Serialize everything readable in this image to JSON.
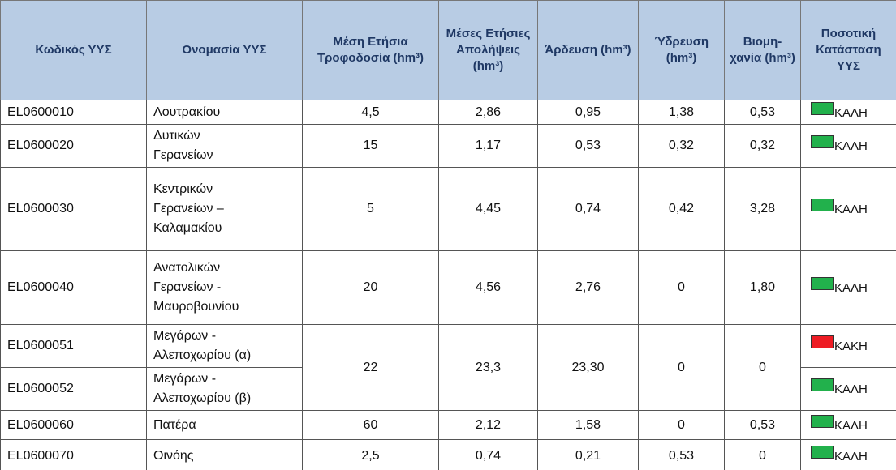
{
  "table": {
    "header": [
      "Κωδικός ΥΥΣ",
      "Ονομασία ΥΥΣ",
      "Μέση Ετήσια Τροφοδοσία (hm³)",
      "Μέσες Ετήσιες Απολήψεις (hm³)",
      "Άρδευση (hm³)",
      "Ύδρευση (hm³)",
      "Βιομη-χανία (hm³)",
      "Ποσοτική Κατάσταση ΥΥΣ"
    ],
    "rows": [
      {
        "code": "EL0600010",
        "name": "Λουτρακίου",
        "inflow": "4,5",
        "outflow": "2,86",
        "irrigation": "0,95",
        "water": "1,38",
        "industry": "0,53",
        "status": "ΚΑΛΗ",
        "color": "#22b14c"
      },
      {
        "code": "EL0600020",
        "name": "Δυτικών\nΓερανείων",
        "inflow": "15",
        "outflow": "1,17",
        "irrigation": "0,53",
        "water": "0,32",
        "industry": "0,32",
        "status": "ΚΑΛΗ",
        "color": "#22b14c"
      },
      {
        "code": "EL0600030",
        "name": "Κεντρικών\nΓερανείων –\nΚαλαμακίου",
        "inflow": "5",
        "outflow": "4,45",
        "irrigation": "0,74",
        "water": "0,42",
        "industry": "3,28",
        "status": "ΚΑΛΗ",
        "color": "#22b14c"
      },
      {
        "code": "EL0600040",
        "name": "Ανατολικών\nΓερανείων -\nΜαυροβουνίου",
        "inflow": "20",
        "outflow": "4,56",
        "irrigation": "2,76",
        "water": "0",
        "industry": "1,80",
        "status": "ΚΑΛΗ",
        "color": "#22b14c"
      },
      {
        "code": "EL0600051",
        "name": "Μεγάρων -\nΑλεποχωρίου (α)",
        "inflow": "22",
        "outflow": "23,3",
        "irrigation": "23,30",
        "water": "0",
        "industry": "0",
        "status": "ΚΑΚΗ",
        "color": "#ee1c24"
      },
      {
        "code": "EL0600052",
        "name": "Μεγάρων -\nΑλεποχωρίου (β)",
        "status": "ΚΑΛΗ",
        "color": "#22b14c"
      },
      {
        "code": "EL0600060",
        "name": "Πατέρα",
        "inflow": "60",
        "outflow": "2,12",
        "irrigation": "1,58",
        "water": "0",
        "industry": "0,53",
        "status": "ΚΑΛΗ",
        "color": "#22b14c"
      },
      {
        "code": "EL0600070",
        "name": "Οινόης",
        "inflow": "2,5",
        "outflow": "0,74",
        "irrigation": "0,21",
        "water": "0,53",
        "industry": "0",
        "status": "ΚΑΛΗ",
        "color": "#22b14c"
      }
    ]
  }
}
